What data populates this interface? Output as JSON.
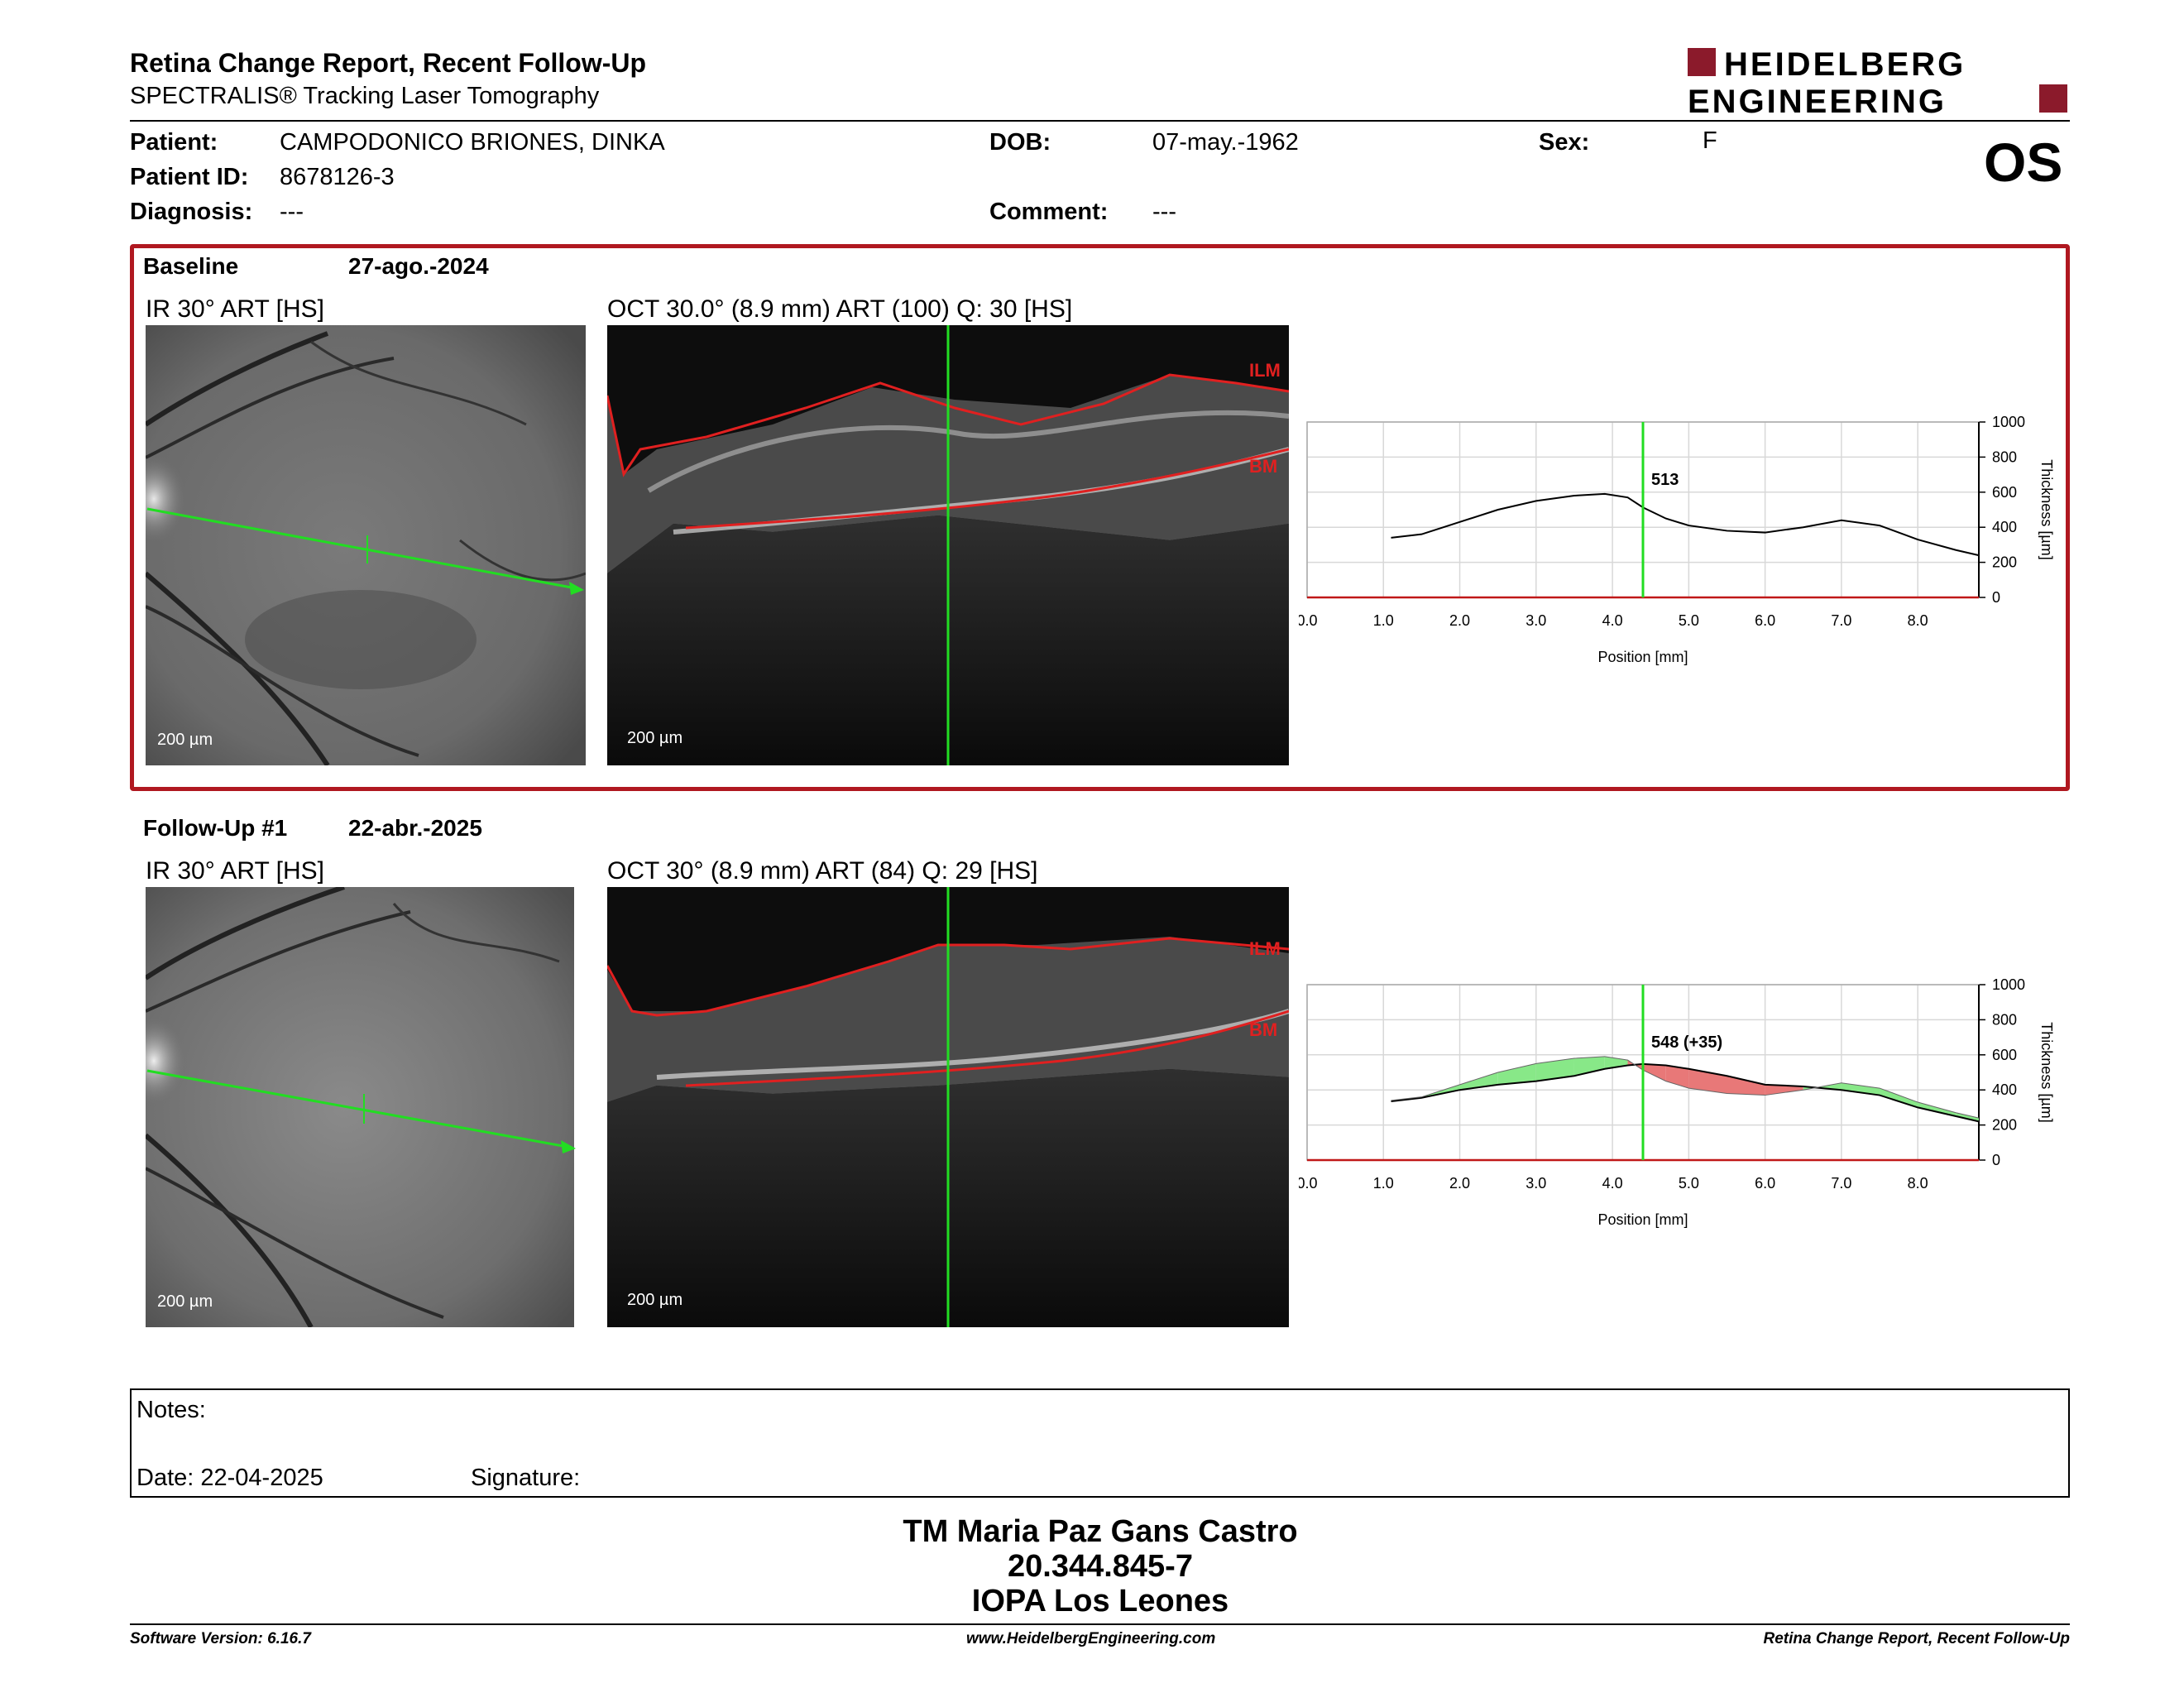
{
  "report": {
    "title": "Retina Change Report, Recent Follow-Up",
    "subtitle": "SPECTRALIS® Tracking Laser Tomography",
    "logo_line1": "HEIDELBERG",
    "logo_line2": "ENGINEERING",
    "eye": "OS"
  },
  "patient": {
    "patient_label": "Patient:",
    "name": "CAMPODONICO BRIONES, DINKA",
    "id_label": "Patient ID:",
    "id": "8678126-3",
    "diagnosis_label": "Diagnosis:",
    "diagnosis": "---",
    "dob_label": "DOB:",
    "dob": "07-may.-1962",
    "comment_label": "Comment:",
    "comment": "---",
    "sex_label": "Sex:",
    "sex": "F"
  },
  "baseline": {
    "label": "Baseline",
    "date": "27-ago.-2024",
    "ir_label": "IR 30° ART [HS]",
    "oct_label": "OCT 30.0° (8.9 mm) ART (100) Q: 30 [HS]",
    "ir_scale": "200 µm",
    "oct_scale": "200 µm",
    "ilm": "ILM",
    "bm": "BM"
  },
  "followup": {
    "label": "Follow-Up #1",
    "date": "22-abr.-2025",
    "ir_label": "IR 30° ART [HS]",
    "oct_label": "OCT 30° (8.9 mm) ART (84) Q: 29 [HS]",
    "ir_scale": "200 µm",
    "oct_scale": "200 µm",
    "ilm": "ILM",
    "bm": "BM"
  },
  "colors": {
    "frame": "#b01820",
    "scan_line": "#22dd22",
    "increase": "#88e888",
    "decrease": "#e87878",
    "segmentation": "#e02020"
  },
  "chart_data": [
    {
      "type": "line",
      "xlabel": "Position [mm]",
      "ylabel": "Thickness [µm]",
      "xlim": [
        0,
        8.8
      ],
      "ylim": [
        0,
        1000
      ],
      "x_ticks": [
        "0.0",
        "1.0",
        "2.0",
        "3.0",
        "4.0",
        "5.0",
        "6.0",
        "7.0",
        "8.0"
      ],
      "y_ticks": [
        "0",
        "200",
        "400",
        "600",
        "800",
        "1000"
      ],
      "cursor_x": 4.4,
      "cursor_label": "513",
      "series": [
        {
          "x": [
            1.1,
            1.5,
            2.0,
            2.5,
            3.0,
            3.5,
            3.9,
            4.2,
            4.4,
            4.7,
            5.0,
            5.5,
            6.0,
            6.5,
            7.0,
            7.5,
            8.0,
            8.5,
            8.8
          ],
          "y": [
            340,
            360,
            430,
            500,
            550,
            580,
            590,
            570,
            513,
            450,
            410,
            380,
            370,
            400,
            440,
            410,
            330,
            270,
            240
          ]
        }
      ]
    },
    {
      "type": "area",
      "xlabel": "Position [mm]",
      "ylabel": "Thickness [µm]",
      "xlim": [
        0,
        8.8
      ],
      "ylim": [
        0,
        1000
      ],
      "x_ticks": [
        "0.0",
        "1.0",
        "2.0",
        "3.0",
        "4.0",
        "5.0",
        "6.0",
        "7.0",
        "8.0"
      ],
      "y_ticks": [
        "0",
        "200",
        "400",
        "600",
        "800",
        "1000"
      ],
      "cursor_x": 4.4,
      "cursor_label": "548 (+35)",
      "series": [
        {
          "x": [
            1.1,
            1.5,
            2.0,
            2.5,
            3.0,
            3.5,
            3.9,
            4.2,
            4.4,
            4.7,
            5.0,
            5.5,
            6.0,
            6.5,
            7.0,
            7.5,
            8.0,
            8.5,
            8.8
          ],
          "y": [
            340,
            360,
            430,
            500,
            550,
            580,
            590,
            570,
            513,
            450,
            410,
            380,
            370,
            400,
            440,
            410,
            330,
            270,
            240
          ]
        },
        {
          "x": [
            1.1,
            1.5,
            2.0,
            2.5,
            3.0,
            3.5,
            3.9,
            4.2,
            4.4,
            4.7,
            5.0,
            5.5,
            6.0,
            6.5,
            7.0,
            7.5,
            8.0,
            8.5,
            8.8
          ],
          "y": [
            335,
            355,
            400,
            430,
            450,
            480,
            520,
            540,
            548,
            540,
            520,
            480,
            430,
            420,
            400,
            370,
            300,
            250,
            220
          ]
        }
      ]
    }
  ],
  "notes": {
    "notes_label": "Notes:",
    "date_label": "Date: 22-04-2025",
    "signature_label": "Signature:"
  },
  "signatory": {
    "name": "TM Maria Paz Gans Castro",
    "rut": "20.344.845-7",
    "org": "IOPA Los Leones"
  },
  "footer": {
    "version": "Software Version: 6.16.7",
    "website": "www.HeidelbergEngineering.com",
    "report_name": "Retina Change Report, Recent Follow-Up"
  }
}
